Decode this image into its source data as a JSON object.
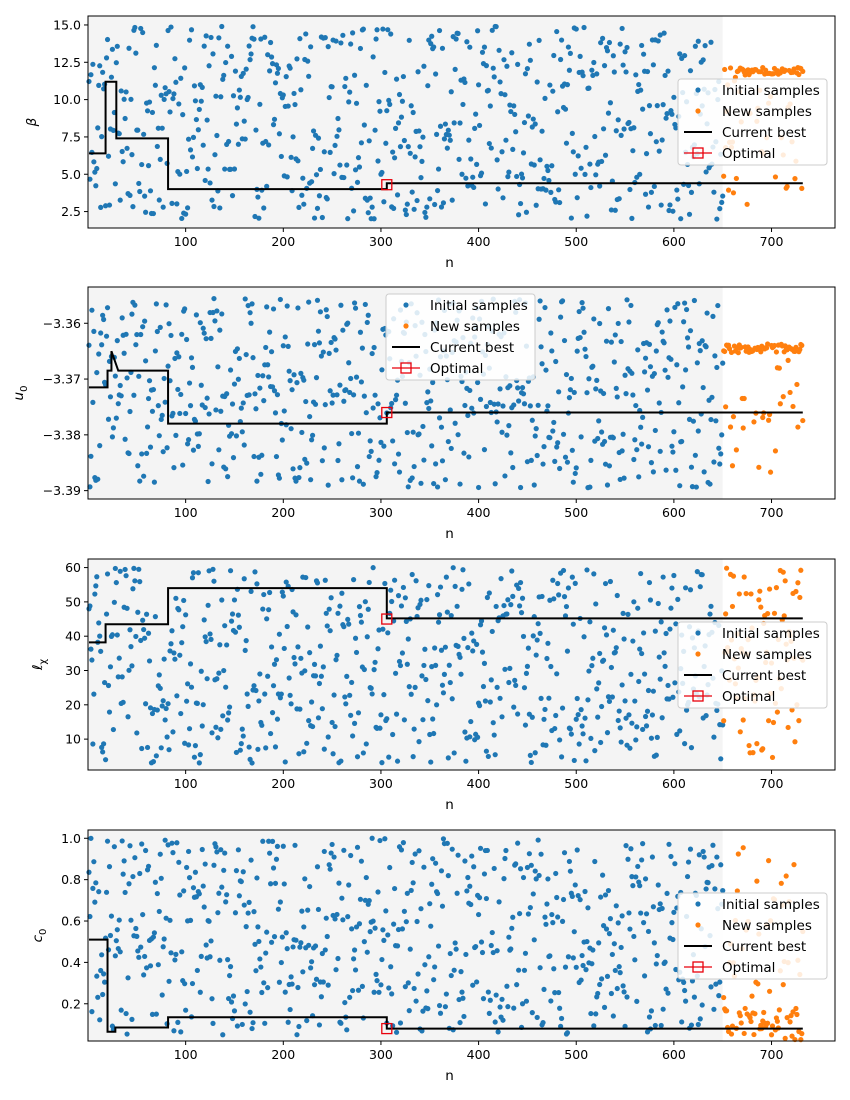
{
  "colors": {
    "initial": "#1f77b4",
    "new": "#ff7f0e",
    "best": "#000000",
    "optimal": "#e8000b",
    "shade": "#f4f4f4"
  },
  "chart_data": [
    {
      "type": "scatter",
      "title": "",
      "xlabel": "n",
      "ylabel": "β",
      "ylabel_main": "β",
      "ylabel_sub": "",
      "xlim": [
        0,
        765
      ],
      "ylim": [
        1.4,
        15.6
      ],
      "xticks": [
        100,
        200,
        300,
        400,
        500,
        600,
        700
      ],
      "xtick_labels": [
        "100",
        "200",
        "300",
        "400",
        "500",
        "600",
        "700"
      ],
      "yticks": [
        2.5,
        5.0,
        7.5,
        10.0,
        12.5,
        15.0
      ],
      "ytick_labels": [
        "2.5",
        "5.0",
        "7.5",
        "10.0",
        "12.5",
        "15.0"
      ],
      "shaded_region": [
        0,
        650
      ],
      "legend_position": "right",
      "legend": [
        "Initial samples",
        "New samples",
        "Current best",
        "Optimal"
      ],
      "initial_samples": {
        "n_range": [
          1,
          650
        ],
        "y_range": [
          2.0,
          14.9
        ],
        "spread": "uniform"
      },
      "new_samples": {
        "n_range": [
          651,
          732
        ],
        "cluster_center": 11.9,
        "cluster_spread": 0.25,
        "cluster_fraction": 0.6,
        "scatter_range": [
          2.8,
          11.5
        ]
      },
      "current_best": {
        "x": [
          1,
          18,
          18,
          24,
          24,
          29,
          29,
          82,
          82,
          306,
          306,
          732
        ],
        "y": [
          6.4,
          6.4,
          11.2,
          11.2,
          11.2,
          11.2,
          7.4,
          7.4,
          4.0,
          4.0,
          4.4,
          4.4
        ]
      },
      "optimal": {
        "x": 306,
        "y": 4.3
      }
    },
    {
      "type": "scatter",
      "title": "",
      "xlabel": "n",
      "ylabel": "u0",
      "ylabel_main": "u",
      "ylabel_sub": "0",
      "xlim": [
        0,
        765
      ],
      "ylim": [
        -3.3915,
        -3.3535
      ],
      "xticks": [
        100,
        200,
        300,
        400,
        500,
        600,
        700
      ],
      "xtick_labels": [
        "100",
        "200",
        "300",
        "400",
        "500",
        "600",
        "700"
      ],
      "yticks": [
        -3.39,
        -3.38,
        -3.37,
        -3.36
      ],
      "ytick_labels": [
        "−3.39",
        "−3.38",
        "−3.37",
        "−3.36"
      ],
      "shaded_region": [
        0,
        650
      ],
      "legend_position": "upper center",
      "legend": [
        "Initial samples",
        "New samples",
        "Current best",
        "Optimal"
      ],
      "initial_samples": {
        "n_range": [
          1,
          650
        ],
        "y_range": [
          -3.3895,
          -3.3555
        ],
        "spread": "uniform"
      },
      "new_samples": {
        "n_range": [
          651,
          732
        ],
        "cluster_center": -3.3645,
        "cluster_spread": 0.0008,
        "cluster_fraction": 0.65,
        "scatter_range": [
          -3.389,
          -3.366
        ]
      },
      "current_best": {
        "x": [
          1,
          20,
          20,
          24,
          24,
          31,
          31,
          82,
          82,
          306,
          306,
          732
        ],
        "y": [
          -3.3715,
          -3.3715,
          -3.3685,
          -3.3685,
          -3.365,
          -3.3685,
          -3.3685,
          -3.3685,
          -3.378,
          -3.378,
          -3.376,
          -3.376
        ]
      },
      "optimal": {
        "x": 306,
        "y": -3.376
      }
    },
    {
      "type": "scatter",
      "title": "",
      "xlabel": "n",
      "ylabel": "ℓχ",
      "ylabel_main": "ℓ",
      "ylabel_sub": "χ",
      "xlim": [
        0,
        765
      ],
      "ylim": [
        1.0,
        62.5
      ],
      "xticks": [
        100,
        200,
        300,
        400,
        500,
        600,
        700
      ],
      "xtick_labels": [
        "100",
        "200",
        "300",
        "400",
        "500",
        "600",
        "700"
      ],
      "yticks": [
        10,
        20,
        30,
        40,
        50,
        60
      ],
      "ytick_labels": [
        "10",
        "20",
        "30",
        "40",
        "50",
        "60"
      ],
      "shaded_region": [
        0,
        650
      ],
      "legend_position": "center right",
      "legend": [
        "Initial samples",
        "New samples",
        "Current best",
        "Optimal"
      ],
      "initial_samples": {
        "n_range": [
          1,
          650
        ],
        "y_range": [
          3.0,
          60.0
        ],
        "spread": "uniform"
      },
      "new_samples": {
        "n_range": [
          651,
          732
        ],
        "cluster_center": 30,
        "cluster_spread": 27,
        "cluster_fraction": 0.0,
        "scatter_range": [
          3.5,
          60.0
        ]
      },
      "current_best": {
        "x": [
          1,
          18,
          18,
          35,
          35,
          82,
          82,
          306,
          306,
          732
        ],
        "y": [
          38.2,
          38.2,
          43.5,
          43.5,
          43.5,
          43.5,
          54.0,
          54.0,
          45.2,
          45.2
        ]
      },
      "optimal": {
        "x": 306,
        "y": 45.0
      }
    },
    {
      "type": "scatter",
      "title": "",
      "xlabel": "n",
      "ylabel": "c0",
      "ylabel_main": "c",
      "ylabel_sub": "0",
      "xlim": [
        0,
        765
      ],
      "ylim": [
        0.02,
        1.04
      ],
      "xticks": [
        100,
        200,
        300,
        400,
        500,
        600,
        700
      ],
      "xtick_labels": [
        "100",
        "200",
        "300",
        "400",
        "500",
        "600",
        "700"
      ],
      "yticks": [
        0.2,
        0.4,
        0.6,
        0.8,
        1.0
      ],
      "ytick_labels": [
        "0.2",
        "0.4",
        "0.6",
        "0.8",
        "1.0"
      ],
      "shaded_region": [
        0,
        650
      ],
      "legend_position": "center right",
      "legend": [
        "Initial samples",
        "New samples",
        "Current best",
        "Optimal"
      ],
      "initial_samples": {
        "n_range": [
          1,
          650
        ],
        "y_range": [
          0.05,
          1.0
        ],
        "spread": "uniform"
      },
      "new_samples": {
        "n_range": [
          651,
          732
        ],
        "cluster_center": 0.1,
        "cluster_spread": 0.08,
        "cluster_fraction": 0.55,
        "scatter_range": [
          0.05,
          0.97
        ]
      },
      "current_best": {
        "x": [
          1,
          20,
          20,
          28,
          28,
          82,
          82,
          306,
          306,
          732
        ],
        "y": [
          0.51,
          0.51,
          0.065,
          0.065,
          0.085,
          0.085,
          0.135,
          0.135,
          0.08,
          0.08
        ]
      },
      "optimal": {
        "x": 306,
        "y": 0.08
      }
    }
  ]
}
